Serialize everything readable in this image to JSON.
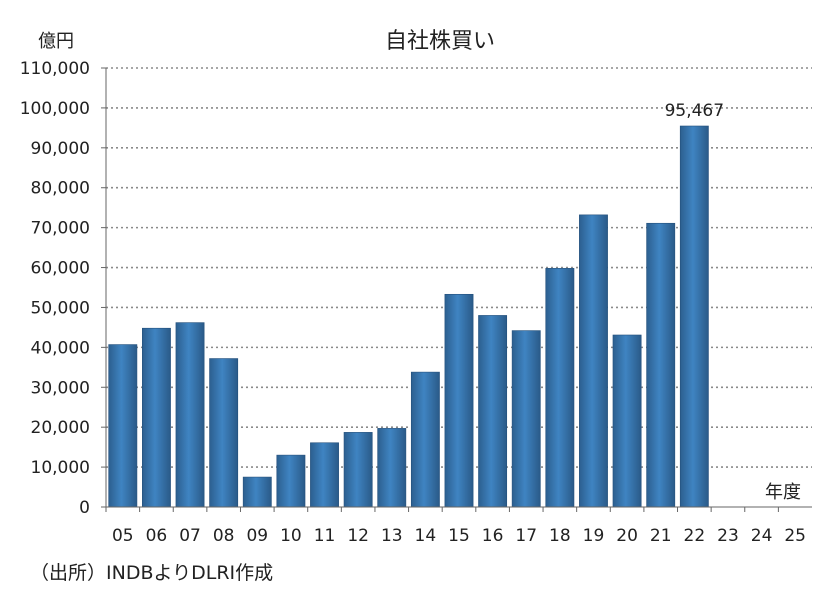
{
  "source_note": "（出所）INDBよりDLRI作成",
  "chart_data": {
    "type": "bar",
    "title": "自社株買い",
    "yunit": "億円",
    "xunit": "年度",
    "categories": [
      "05",
      "06",
      "07",
      "08",
      "09",
      "10",
      "11",
      "12",
      "13",
      "14",
      "15",
      "16",
      "17",
      "18",
      "19",
      "20",
      "21",
      "22",
      "23",
      "24",
      "25"
    ],
    "values": [
      40700,
      44800,
      46200,
      37200,
      7500,
      13000,
      16100,
      18700,
      19700,
      33800,
      53300,
      48000,
      44200,
      59800,
      73200,
      43100,
      71100,
      95467,
      null,
      null,
      null
    ],
    "ylim": [
      0,
      110000
    ],
    "yticks": [
      "0",
      "10,000",
      "20,000",
      "30,000",
      "40,000",
      "50,000",
      "60,000",
      "70,000",
      "80,000",
      "90,000",
      "100,000",
      "110,000"
    ],
    "data_labels": [
      {
        "category": "22",
        "text": "95,467"
      }
    ],
    "grid": true,
    "bar_color": "#3a7bb8"
  }
}
